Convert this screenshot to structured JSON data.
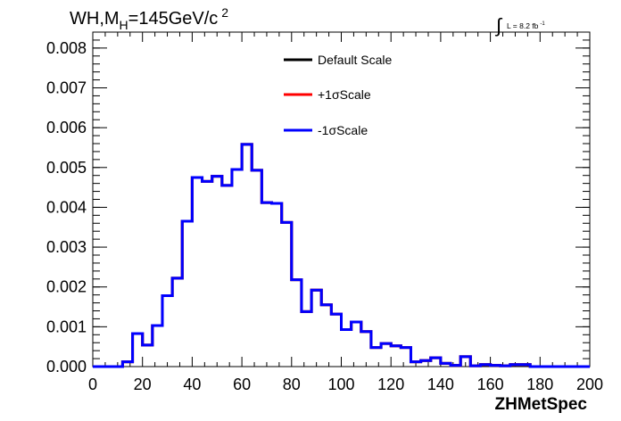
{
  "chart_data": {
    "type": "histogram",
    "title": "WH,M",
    "title_sub": "H",
    "title_rest": "=145GeV/c",
    "title_sup": "2",
    "lumi_text": "L = 8.2 fb",
    "lumi_sup": "-1",
    "xlabel": "ZHMetSpec",
    "xlim": [
      0,
      200
    ],
    "ylim": [
      0,
      0.0084
    ],
    "x_ticks": [
      "0",
      "20",
      "40",
      "60",
      "80",
      "100",
      "120",
      "140",
      "160",
      "180",
      "200"
    ],
    "y_ticks": [
      "0.000",
      "0.001",
      "0.002",
      "0.003",
      "0.004",
      "0.005",
      "0.006",
      "0.007",
      "0.008"
    ],
    "bin_width": 4,
    "bin_low_edges": [
      0,
      4,
      8,
      12,
      16,
      20,
      24,
      28,
      32,
      36,
      40,
      44,
      48,
      52,
      56,
      60,
      64,
      68,
      72,
      76,
      80,
      84,
      88,
      92,
      96,
      100,
      104,
      108,
      112,
      116,
      120,
      124,
      128,
      132,
      136,
      140,
      144,
      148,
      152,
      156,
      160,
      164,
      168,
      172,
      176,
      180,
      184,
      188,
      192,
      196
    ],
    "legend": {
      "position": "top-center",
      "entries": [
        {
          "label": "Default Scale",
          "color": "#000000"
        },
        {
          "label": "+1σScale",
          "color": "#ff0000"
        },
        {
          "label": "-1σScale",
          "color": "#0000ff"
        }
      ]
    },
    "series": [
      {
        "label_ref": "Default Scale",
        "color": "#000000",
        "values": [
          0,
          0,
          0,
          0.00012,
          0.00083,
          0.00054,
          0.00103,
          0.00178,
          0.00222,
          0.00365,
          0.00475,
          0.00465,
          0.00478,
          0.00455,
          0.00495,
          0.00558,
          0.00493,
          0.00412,
          0.0041,
          0.00362,
          0.00218,
          0.00138,
          0.00192,
          0.00155,
          0.00132,
          0.00093,
          0.00112,
          0.00088,
          0.00048,
          0.00058,
          0.00052,
          0.00048,
          0.00012,
          0.00015,
          0.00022,
          8e-05,
          3e-05,
          0.00025,
          2e-05,
          5e-05,
          3e-05,
          2e-05,
          5e-05,
          5e-05,
          0,
          0,
          0,
          0,
          0,
          0
        ]
      },
      {
        "label_ref": "+1σScale",
        "color": "#ff0000",
        "values": [
          0,
          0,
          0,
          0.00012,
          0.00083,
          0.00054,
          0.00103,
          0.00178,
          0.00222,
          0.00365,
          0.00475,
          0.00465,
          0.00478,
          0.00455,
          0.00495,
          0.00558,
          0.00493,
          0.00412,
          0.0041,
          0.00362,
          0.00218,
          0.00138,
          0.00192,
          0.00155,
          0.00132,
          0.00093,
          0.00112,
          0.00088,
          0.00048,
          0.00058,
          0.00052,
          0.00048,
          0.00012,
          0.00015,
          0.00022,
          8e-05,
          3e-05,
          0.00025,
          2e-05,
          5e-05,
          3e-05,
          2e-05,
          5e-05,
          5e-05,
          0,
          0,
          0,
          0,
          0,
          0
        ]
      },
      {
        "label_ref": "-1σScale",
        "color": "#0000ff",
        "values": [
          0,
          0,
          0,
          0.00012,
          0.00083,
          0.00054,
          0.00103,
          0.00178,
          0.00222,
          0.00365,
          0.00475,
          0.00465,
          0.00478,
          0.00455,
          0.00495,
          0.00558,
          0.00493,
          0.00412,
          0.0041,
          0.00362,
          0.00218,
          0.00138,
          0.00192,
          0.00155,
          0.00132,
          0.00093,
          0.00112,
          0.00088,
          0.00048,
          0.00058,
          0.00052,
          0.00048,
          0.00012,
          0.00015,
          0.00022,
          8e-05,
          3e-05,
          0.00025,
          2e-05,
          5e-05,
          3e-05,
          2e-05,
          5e-05,
          5e-05,
          0,
          0,
          0,
          0,
          0,
          0
        ]
      }
    ]
  }
}
